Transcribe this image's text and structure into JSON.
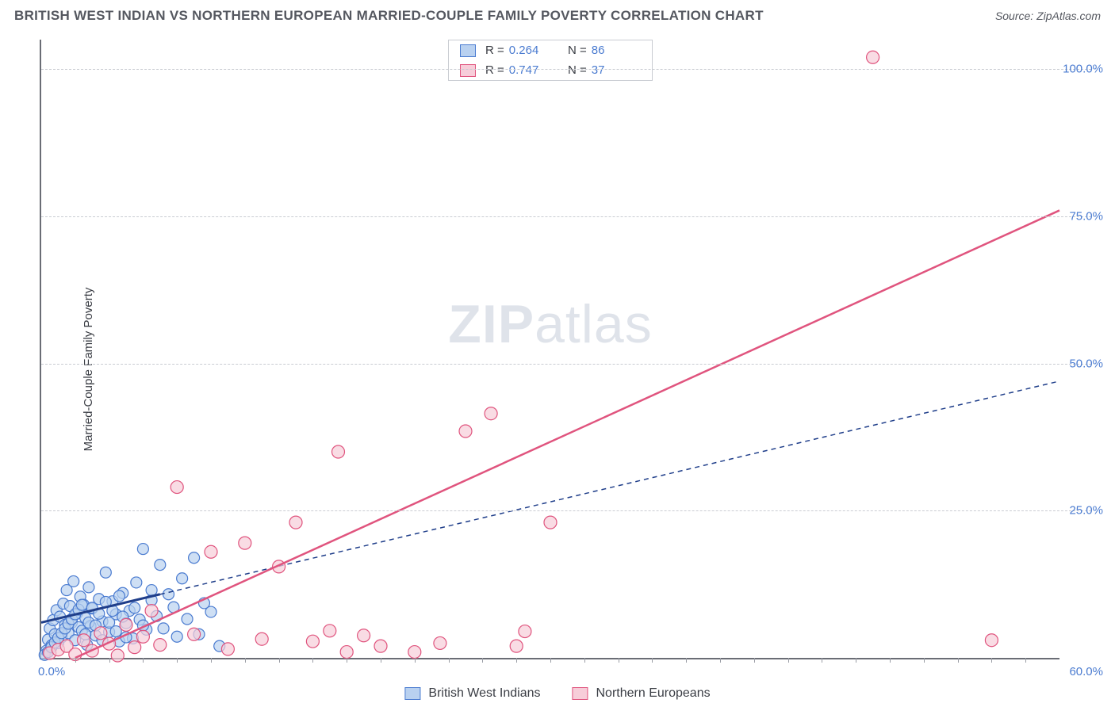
{
  "header": {
    "title": "BRITISH WEST INDIAN VS NORTHERN EUROPEAN MARRIED-COUPLE FAMILY POVERTY CORRELATION CHART",
    "source": "Source: ZipAtlas.com"
  },
  "chart": {
    "type": "scatter",
    "y_axis_label": "Married-Couple Family Poverty",
    "watermark_bold": "ZIP",
    "watermark_rest": "atlas",
    "xlim": [
      0,
      60
    ],
    "ylim": [
      0,
      105
    ],
    "x_origin_label": "0.0%",
    "x_max_label": "60.0%",
    "y_ticks": [
      {
        "v": 25,
        "label": "25.0%"
      },
      {
        "v": 50,
        "label": "50.0%"
      },
      {
        "v": 75,
        "label": "75.0%"
      },
      {
        "v": 100,
        "label": "100.0%"
      }
    ],
    "x_minor_ticks": [
      2,
      4,
      6,
      8,
      10,
      12,
      14,
      16,
      18,
      20,
      22,
      24,
      26,
      28,
      30,
      32,
      34,
      36,
      38,
      40,
      42,
      44,
      46,
      48,
      50,
      52,
      54,
      56,
      58
    ],
    "grid_color": "#c9ccd2",
    "background_color": "#ffffff",
    "axis_color": "#6a6d75",
    "tick_label_color": "#4a7bd0",
    "series": [
      {
        "name": "British West Indians",
        "marker_fill": "#b9d1f0",
        "marker_stroke": "#4a7bd0",
        "marker_radius": 7,
        "trend_color": "#1f3e8a",
        "trend_dash": "6 5",
        "trend_width": 1.5,
        "trend": {
          "x1": 0,
          "y1": 6,
          "x2": 60,
          "y2": 47
        },
        "solid_trend_segment": {
          "x1": 0,
          "y1": 6,
          "x2": 7,
          "y2": 10.8
        },
        "r_value": "0.264",
        "n_value": "86",
        "points": [
          [
            0.3,
            1.2
          ],
          [
            0.4,
            3.1
          ],
          [
            0.5,
            5.0
          ],
          [
            0.6,
            2.1
          ],
          [
            0.7,
            6.4
          ],
          [
            0.8,
            4.0
          ],
          [
            0.9,
            8.1
          ],
          [
            1.0,
            2.5
          ],
          [
            1.1,
            7.0
          ],
          [
            1.2,
            3.5
          ],
          [
            1.3,
            9.2
          ],
          [
            1.4,
            5.6
          ],
          [
            1.5,
            11.5
          ],
          [
            1.6,
            4.2
          ],
          [
            1.7,
            8.8
          ],
          [
            1.8,
            6.0
          ],
          [
            1.9,
            13.0
          ],
          [
            2.0,
            3.0
          ],
          [
            2.1,
            7.5
          ],
          [
            2.2,
            5.2
          ],
          [
            2.3,
            10.4
          ],
          [
            2.4,
            4.6
          ],
          [
            2.5,
            9.0
          ],
          [
            2.6,
            6.8
          ],
          [
            2.7,
            2.2
          ],
          [
            2.8,
            12.0
          ],
          [
            2.9,
            5.4
          ],
          [
            3.0,
            8.4
          ],
          [
            3.2,
            3.8
          ],
          [
            3.4,
            10.0
          ],
          [
            3.6,
            6.2
          ],
          [
            3.8,
            14.5
          ],
          [
            4.0,
            4.4
          ],
          [
            4.2,
            9.6
          ],
          [
            4.4,
            7.4
          ],
          [
            4.6,
            2.8
          ],
          [
            4.8,
            11.0
          ],
          [
            5.0,
            5.9
          ],
          [
            5.2,
            8.0
          ],
          [
            5.4,
            3.3
          ],
          [
            5.6,
            12.8
          ],
          [
            5.8,
            6.5
          ],
          [
            6.0,
            18.5
          ],
          [
            6.2,
            4.8
          ],
          [
            6.5,
            9.8
          ],
          [
            6.8,
            7.1
          ],
          [
            7.0,
            15.8
          ],
          [
            7.2,
            5.0
          ],
          [
            7.5,
            10.8
          ],
          [
            7.8,
            8.6
          ],
          [
            8.0,
            3.6
          ],
          [
            8.3,
            13.5
          ],
          [
            8.6,
            6.6
          ],
          [
            9.0,
            17.0
          ],
          [
            9.3,
            4.0
          ],
          [
            9.6,
            9.3
          ],
          [
            10.0,
            7.8
          ],
          [
            10.5,
            2.0
          ],
          [
            0.2,
            0.5
          ],
          [
            0.4,
            1.0
          ],
          [
            0.6,
            1.8
          ],
          [
            0.8,
            2.6
          ],
          [
            1.0,
            3.4
          ],
          [
            1.2,
            4.2
          ],
          [
            1.4,
            5.0
          ],
          [
            1.6,
            5.8
          ],
          [
            1.8,
            6.6
          ],
          [
            2.0,
            7.4
          ],
          [
            2.2,
            8.2
          ],
          [
            2.4,
            9.0
          ],
          [
            2.6,
            4.0
          ],
          [
            2.8,
            6.0
          ],
          [
            3.0,
            8.5
          ],
          [
            3.2,
            5.5
          ],
          [
            3.4,
            7.5
          ],
          [
            3.6,
            3.0
          ],
          [
            3.8,
            9.5
          ],
          [
            4.0,
            6.0
          ],
          [
            4.2,
            8.0
          ],
          [
            4.4,
            4.5
          ],
          [
            4.6,
            10.5
          ],
          [
            4.8,
            7.0
          ],
          [
            5.0,
            3.5
          ],
          [
            5.5,
            8.5
          ],
          [
            6.0,
            5.5
          ],
          [
            6.5,
            11.5
          ]
        ]
      },
      {
        "name": "Northern Europeans",
        "marker_fill": "#f7cdd9",
        "marker_stroke": "#e0547e",
        "marker_radius": 8,
        "trend_color": "#e0547e",
        "trend_dash": "",
        "trend_width": 2.5,
        "trend": {
          "x1": 2,
          "y1": 0,
          "x2": 60,
          "y2": 76
        },
        "r_value": "0.747",
        "n_value": "37",
        "points": [
          [
            0.5,
            0.8
          ],
          [
            1.0,
            1.4
          ],
          [
            1.5,
            2.0
          ],
          [
            2.0,
            0.6
          ],
          [
            2.5,
            3.0
          ],
          [
            3.0,
            1.2
          ],
          [
            3.5,
            4.2
          ],
          [
            4.0,
            2.4
          ],
          [
            4.5,
            0.4
          ],
          [
            5.0,
            5.6
          ],
          [
            5.5,
            1.8
          ],
          [
            6.0,
            3.6
          ],
          [
            6.5,
            8.0
          ],
          [
            7.0,
            2.2
          ],
          [
            8.0,
            29.0
          ],
          [
            9.0,
            4.0
          ],
          [
            10.0,
            18.0
          ],
          [
            11.0,
            1.5
          ],
          [
            12.0,
            19.5
          ],
          [
            13.0,
            3.2
          ],
          [
            14.0,
            15.5
          ],
          [
            15.0,
            23.0
          ],
          [
            16.0,
            2.8
          ],
          [
            17.0,
            4.6
          ],
          [
            18.0,
            1.0
          ],
          [
            19.0,
            3.8
          ],
          [
            20.0,
            2.0
          ],
          [
            17.5,
            35.0
          ],
          [
            22.0,
            1.0
          ],
          [
            23.5,
            2.5
          ],
          [
            25.0,
            38.5
          ],
          [
            26.5,
            41.5
          ],
          [
            28.0,
            2.0
          ],
          [
            30.0,
            23.0
          ],
          [
            28.5,
            4.5
          ],
          [
            49.0,
            102.0
          ],
          [
            56.0,
            3.0
          ]
        ]
      }
    ],
    "legend_top": {
      "r_label": "R =",
      "n_label": "N ="
    },
    "legend_bottom": [
      {
        "label": "British West Indians",
        "fill": "#b9d1f0",
        "stroke": "#4a7bd0"
      },
      {
        "label": "Northern Europeans",
        "fill": "#f7cdd9",
        "stroke": "#e0547e"
      }
    ]
  }
}
